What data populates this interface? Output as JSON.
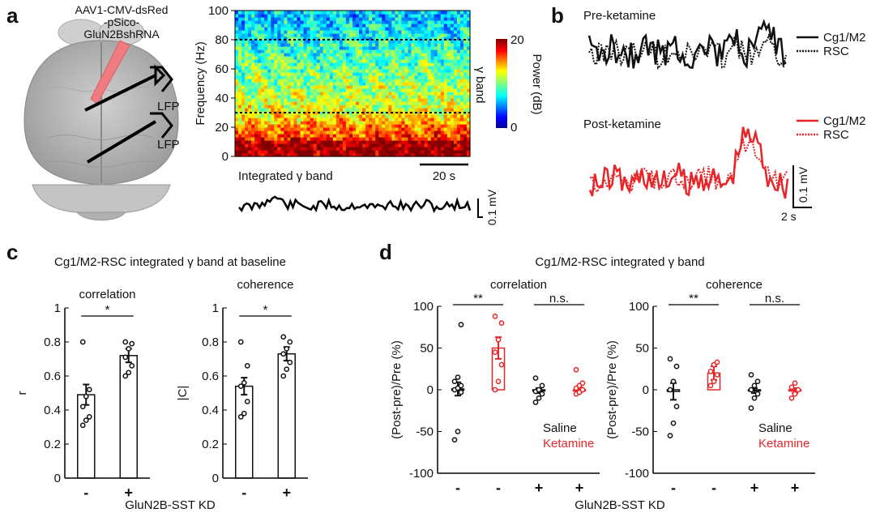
{
  "panels": {
    "a": "a",
    "b": "b",
    "c": "c",
    "d": "d"
  },
  "colors": {
    "saline": "#111111",
    "ketamine": "#e8262a",
    "brain": "#bdbdbd",
    "pipette": "#f07c82"
  },
  "panel_a": {
    "virus_lines": [
      "AAV1-CMV-dsRed",
      "-pSico-",
      "GluN2BshRNA"
    ],
    "lfp1": "LFP",
    "lfp2": "LFP",
    "gamma_band": "γ band",
    "integrated_label": "Integrated γ band",
    "scale_time": "20 s",
    "scale_volt": "0.1 mV"
  },
  "panel_b": {
    "pre_title": "Pre-ketamine",
    "post_title": "Post-ketamine",
    "legend_pre": [
      "Cg1/M2",
      "RSC"
    ],
    "legend_post": [
      "Cg1/M2",
      "RSC"
    ],
    "scale_time": "2 s",
    "scale_volt": "0.1 mV"
  },
  "chart_data": [
    {
      "id": "spectrogram",
      "type": "heatmap",
      "xlabel": "",
      "ylabel": "Frequency (Hz)",
      "ylim": [
        0,
        100
      ],
      "yticks": [
        0,
        20,
        40,
        60,
        80,
        100
      ],
      "gamma_band_hz": [
        30,
        80
      ],
      "colorbar": {
        "label": "Power (dB)",
        "range": [
          0,
          20
        ],
        "ticks": [
          0,
          20
        ]
      }
    },
    {
      "id": "c_correlation",
      "type": "bar",
      "title": "correlation",
      "ylabel": "r",
      "ylim": [
        0,
        1
      ],
      "yticks": [
        0,
        0.2,
        0.4,
        0.6,
        0.8,
        1
      ],
      "categories": [
        "-",
        "+"
      ],
      "values": [
        0.49,
        0.72
      ],
      "errors": [
        0.06,
        0.04
      ],
      "points": [
        [
          0.31,
          0.34,
          0.36,
          0.42,
          0.48,
          0.52,
          0.8
        ],
        [
          0.6,
          0.62,
          0.66,
          0.71,
          0.76,
          0.79,
          0.8
        ]
      ],
      "significance": "*"
    },
    {
      "id": "c_coherence",
      "type": "bar",
      "title": "coherence",
      "ylabel": "|C|",
      "ylim": [
        0,
        1
      ],
      "yticks": [
        0,
        0.2,
        0.4,
        0.6,
        0.8,
        1
      ],
      "categories": [
        "-",
        "+"
      ],
      "values": [
        0.54,
        0.73
      ],
      "errors": [
        0.05,
        0.04
      ],
      "points": [
        [
          0.36,
          0.38,
          0.45,
          0.54,
          0.56,
          0.66,
          0.8
        ],
        [
          0.6,
          0.64,
          0.68,
          0.73,
          0.76,
          0.8,
          0.83
        ]
      ],
      "significance": "*"
    },
    {
      "id": "d_correlation",
      "type": "bar",
      "title": "correlation",
      "ylabel": "(Post-pre)/Pre (%)",
      "ylim": [
        -100,
        100
      ],
      "yticks": [
        -100,
        -50,
        0,
        50,
        100
      ],
      "categories": [
        "-",
        "-",
        "+",
        "+"
      ],
      "groups": [
        "Saline",
        "Ketamine",
        "Saline",
        "Ketamine"
      ],
      "values": [
        1,
        50,
        -1,
        0
      ],
      "errors": [
        8,
        13,
        3,
        3
      ],
      "points": [
        [
          -60,
          -50,
          -3,
          0,
          2,
          5,
          10,
          15,
          78
        ],
        [
          0,
          10,
          30,
          45,
          60,
          80,
          88
        ],
        [
          -15,
          -10,
          -5,
          -2,
          0,
          5,
          14
        ],
        [
          -5,
          -3,
          0,
          2,
          5,
          8,
          24
        ]
      ],
      "significance": [
        "**",
        "n.s."
      ]
    },
    {
      "id": "d_coherence",
      "type": "bar",
      "title": "coherence",
      "ylabel": "(Post-pre)/Pre (%)",
      "ylim": [
        -100,
        100
      ],
      "yticks": [
        -100,
        -50,
        0,
        50,
        100
      ],
      "categories": [
        "-",
        "-",
        "+",
        "+"
      ],
      "groups": [
        "Saline",
        "Ketamine",
        "Saline",
        "Ketamine"
      ],
      "values": [
        -2,
        20,
        -1,
        -1
      ],
      "errors": [
        10,
        8,
        3,
        3
      ],
      "points": [
        [
          -55,
          -40,
          -20,
          0,
          10,
          28,
          37
        ],
        [
          5,
          10,
          18,
          22,
          30,
          33
        ],
        [
          -22,
          -10,
          -5,
          0,
          5,
          10,
          18
        ],
        [
          -10,
          -5,
          0,
          3,
          8
        ]
      ],
      "significance": [
        "**",
        "n.s."
      ]
    }
  ],
  "panel_c": {
    "title": "Cg1/M2-RSC integrated γ band at baseline",
    "xlabel": "GluN2B-SST KD"
  },
  "panel_d": {
    "title": "Cg1/M2-RSC integrated γ band",
    "xlabel": "GluN2B-SST KD",
    "legend": [
      "Saline",
      "Ketamine"
    ]
  }
}
